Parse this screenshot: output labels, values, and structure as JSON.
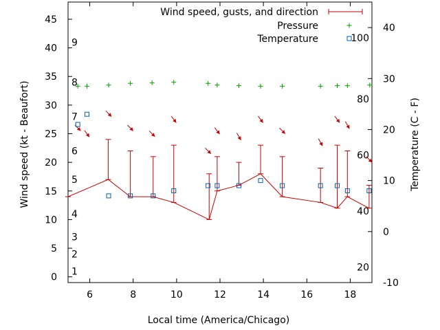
{
  "chart_data": {
    "type": "line",
    "xlabel": "Local time (America/Chicago)",
    "ylabel": "Wind speed (kt - Beaufort)",
    "y2label": "Temperature (C - F)",
    "xlim": [
      5,
      19
    ],
    "ylim": [
      -1,
      48
    ],
    "y2lim": [
      -10,
      45
    ],
    "x_ticks": [
      6,
      8,
      10,
      12,
      14,
      16,
      18
    ],
    "y_ticks": [
      0,
      5,
      10,
      15,
      20,
      25,
      30,
      35,
      40,
      45
    ],
    "y2_ticks": [
      -10,
      0,
      10,
      20,
      30,
      40
    ],
    "beaufort_labels": [
      {
        "label": "1",
        "y": 1
      },
      {
        "label": "2",
        "y": 4
      },
      {
        "label": "3",
        "y": 7
      },
      {
        "label": "4",
        "y": 11
      },
      {
        "label": "5",
        "y": 17
      },
      {
        "label": "6",
        "y": 22
      },
      {
        "label": "7",
        "y": 28
      },
      {
        "label": "8",
        "y": 34
      },
      {
        "label": "9",
        "y": 41
      }
    ],
    "fahrenheit_labels": [
      {
        "label": "20",
        "y2": -7
      },
      {
        "label": "40",
        "y2": 4
      },
      {
        "label": "60",
        "y2": 15
      },
      {
        "label": "80",
        "y2": 26
      },
      {
        "label": "100",
        "y2": 38
      }
    ],
    "legend_position": "top-right",
    "grid": false,
    "series": [
      {
        "name": "Wind speed, gusts, and direction",
        "color": "#cc0000",
        "x": [
          5.0,
          6.85,
          7.87,
          8.92,
          9.87,
          11.5,
          11.87,
          12.87,
          13.87,
          14.87,
          16.63,
          17.4,
          17.87,
          18.87
        ],
        "y": [
          14,
          17,
          14,
          14,
          13,
          10,
          15,
          16,
          18,
          14,
          13,
          12,
          14,
          12
        ],
        "gust": [
          null,
          24,
          22,
          21,
          23,
          18,
          21,
          20,
          23,
          21,
          19,
          23,
          22,
          16
        ]
      },
      {
        "name": "Pressure",
        "color": "#00a000",
        "x": [
          5.45,
          5.87,
          6.87,
          7.87,
          8.87,
          9.87,
          11.45,
          11.87,
          12.87,
          13.87,
          14.87,
          16.63,
          17.4,
          17.87,
          18.9
        ],
        "y": [
          33.3,
          33.3,
          33.5,
          33.8,
          33.9,
          34.0,
          33.8,
          33.5,
          33.4,
          33.3,
          33.3,
          33.3,
          33.4,
          33.4,
          33.5
        ]
      },
      {
        "name": "Temperature",
        "color": "#0060ad",
        "x": [
          5.45,
          5.87,
          6.87,
          7.87,
          8.92,
          9.87,
          11.45,
          11.87,
          12.87,
          13.87,
          14.87,
          16.63,
          17.4,
          17.87,
          18.87
        ],
        "y2": [
          21,
          23,
          7,
          7,
          7,
          8,
          9,
          9,
          9,
          10,
          9,
          9,
          9,
          8,
          8
        ]
      }
    ],
    "wind_direction_arrows": [
      {
        "x": 5.45,
        "y": 26,
        "dx": 0.7,
        "dy": -0.7
      },
      {
        "x": 5.87,
        "y": 25,
        "dx": 0.6,
        "dy": -0.8
      },
      {
        "x": 6.87,
        "y": 28.5,
        "dx": 0.7,
        "dy": -0.7
      },
      {
        "x": 7.87,
        "y": 26,
        "dx": 0.7,
        "dy": -0.7
      },
      {
        "x": 8.87,
        "y": 25,
        "dx": 0.7,
        "dy": -0.7
      },
      {
        "x": 9.87,
        "y": 27.5,
        "dx": 0.6,
        "dy": -0.8
      },
      {
        "x": 11.45,
        "y": 22,
        "dx": 0.7,
        "dy": -0.7
      },
      {
        "x": 11.87,
        "y": 25.5,
        "dx": 0.6,
        "dy": -0.8
      },
      {
        "x": 12.87,
        "y": 24.5,
        "dx": 0.5,
        "dy": -0.87
      },
      {
        "x": 13.87,
        "y": 27.5,
        "dx": 0.6,
        "dy": -0.8
      },
      {
        "x": 14.87,
        "y": 25.5,
        "dx": 0.7,
        "dy": -0.7
      },
      {
        "x": 16.63,
        "y": 23.5,
        "dx": 0.5,
        "dy": -0.87
      },
      {
        "x": 17.4,
        "y": 27.5,
        "dx": 0.6,
        "dy": -0.8
      },
      {
        "x": 17.87,
        "y": 26.5,
        "dx": 0.5,
        "dy": -0.87
      },
      {
        "x": 18.87,
        "y": 20.5,
        "dx": 0.7,
        "dy": -0.7
      }
    ]
  }
}
